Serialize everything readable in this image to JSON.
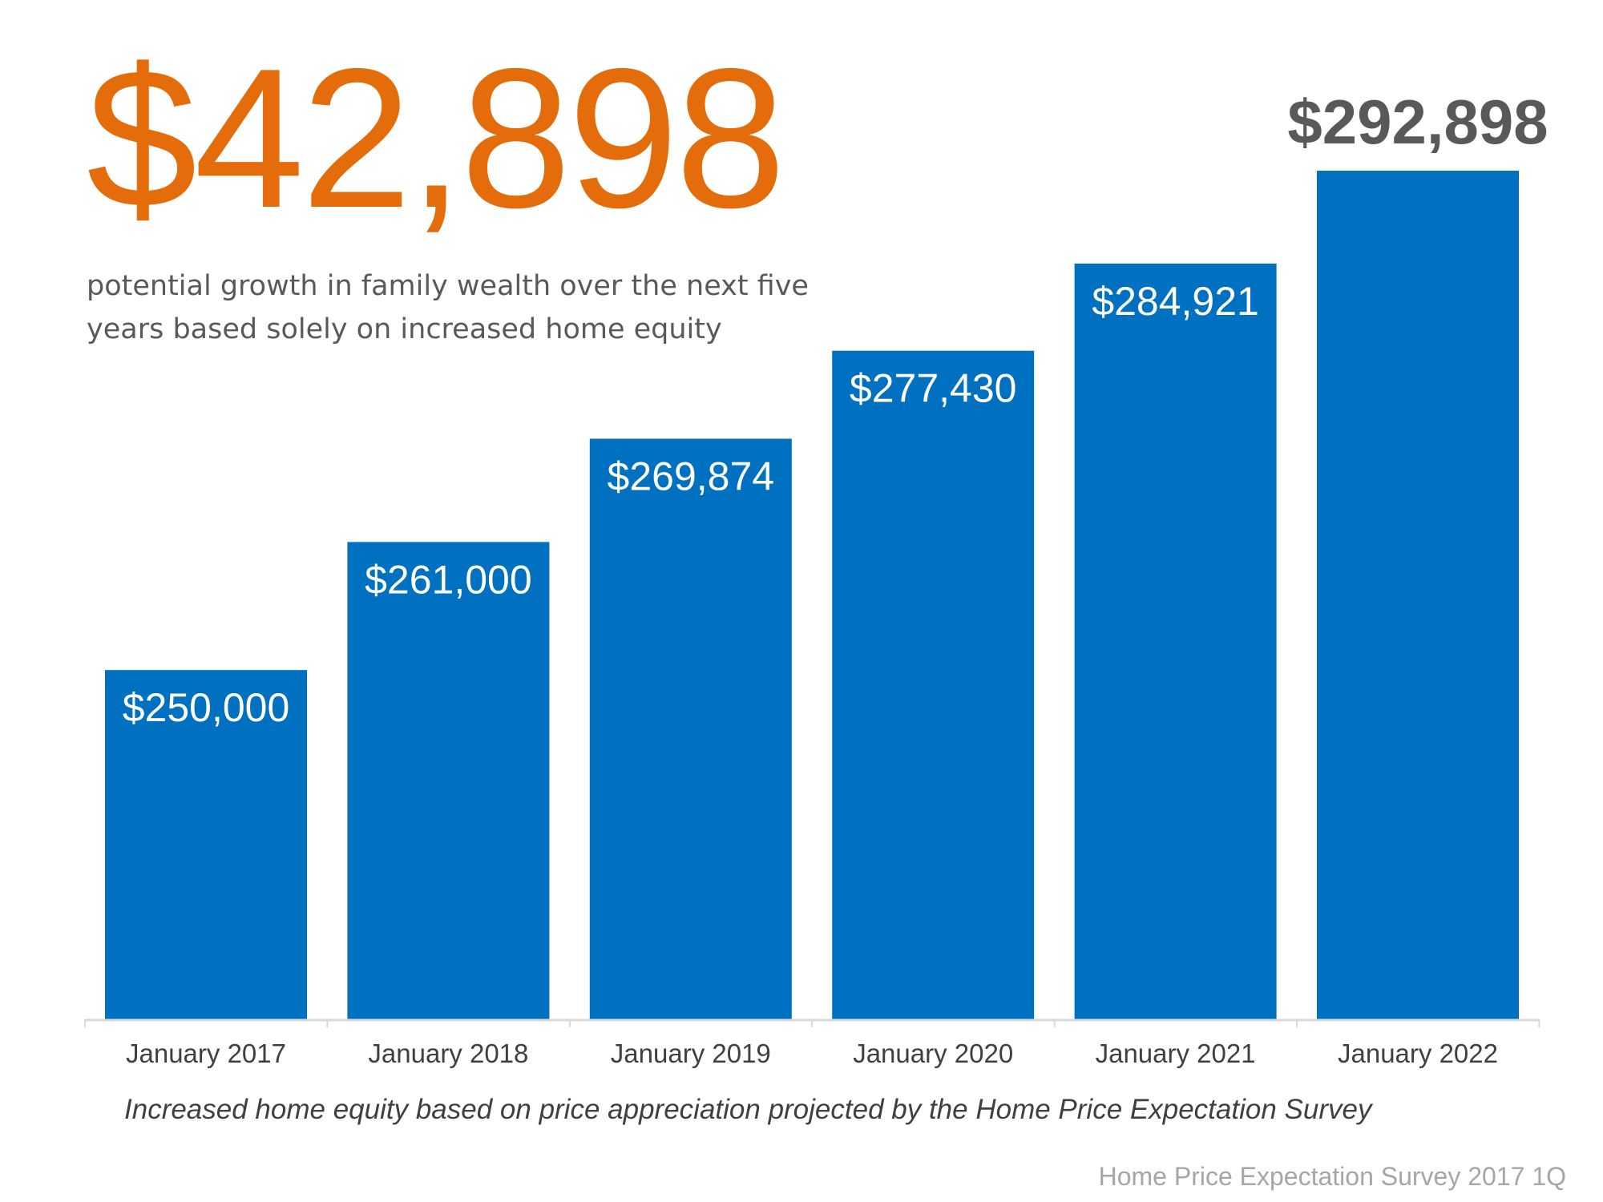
{
  "headline": {
    "value": "$42,898",
    "color": "#E46C0A"
  },
  "subtitle": "potential growth in family wealth over the next five years based solely on increased home equity",
  "footnote": "Increased home equity based on price appreciation projected by the Home Price Expectation Survey",
  "source": "Home Price Expectation Survey 2017 1Q",
  "chart_data": {
    "type": "bar",
    "categories": [
      "January 2017",
      "January 2018",
      "January 2019",
      "January 2020",
      "January 2021",
      "January 2022"
    ],
    "values": [
      250000,
      261000,
      269874,
      277430,
      284921,
      292898
    ],
    "data_labels": [
      "$250,000",
      "$261,000",
      "$269,874",
      "$277,430",
      "$284,921",
      "$292,898"
    ],
    "ylim": [
      220000,
      300000
    ],
    "grid": false,
    "bar_color": "#0070C0",
    "label_color_inside": "#FFFFFF",
    "label_color_last": "#595959"
  }
}
